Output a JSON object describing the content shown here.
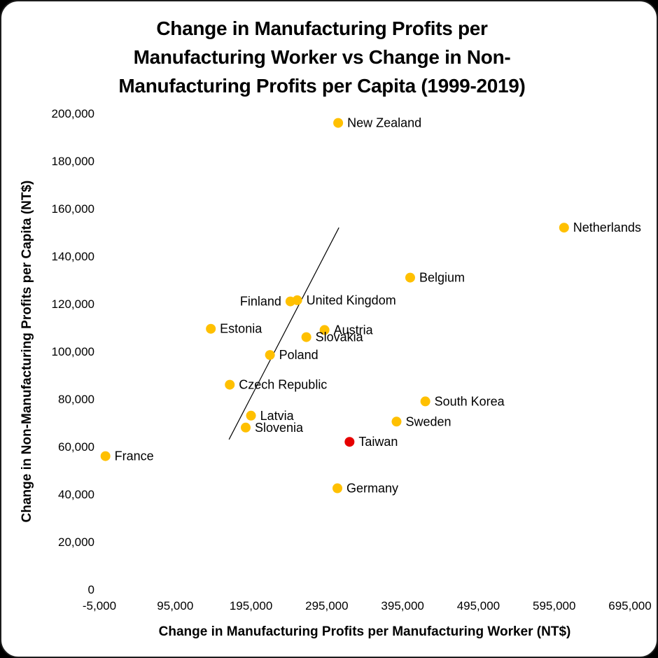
{
  "frame": {
    "background_color": "#ffffff",
    "corner_color": "#000000"
  },
  "chart_data": {
    "type": "scatter",
    "title": "Change in Manufacturing Profits per Manufacturing Worker vs Change in Non-Manufacturing Profits per Capita (1999-2019)",
    "title_lines": [
      "Change in Manufacturing Profits per",
      "Manufacturing Worker vs Change in Non-",
      "Manufacturing Profits per Capita (1999-2019)"
    ],
    "xlabel": "Change in Manufacturing Profits per Manufacturing Worker (NT$)",
    "ylabel": "Change in Non-Manufacturing Profits per Capita (NT$)",
    "xlim": [
      -5000,
      695000
    ],
    "ylim": [
      0,
      200000
    ],
    "grid": false,
    "legend": false,
    "default_point_color": "#FFC000",
    "accent_color": "#E60000",
    "x_ticks": [
      {
        "value": -5000,
        "label": "-5,000"
      },
      {
        "value": 95000,
        "label": "95,000"
      },
      {
        "value": 195000,
        "label": "195,000"
      },
      {
        "value": 295000,
        "label": "295,000"
      },
      {
        "value": 395000,
        "label": "395,000"
      },
      {
        "value": 495000,
        "label": "495,000"
      },
      {
        "value": 595000,
        "label": "595,000"
      },
      {
        "value": 695000,
        "label": "695,000"
      }
    ],
    "y_ticks": [
      {
        "value": 0,
        "label": "0"
      },
      {
        "value": 20000,
        "label": "20,000"
      },
      {
        "value": 40000,
        "label": "40,000"
      },
      {
        "value": 60000,
        "label": "60,000"
      },
      {
        "value": 80000,
        "label": "80,000"
      },
      {
        "value": 100000,
        "label": "100,000"
      },
      {
        "value": 120000,
        "label": "120,000"
      },
      {
        "value": 140000,
        "label": "140,000"
      },
      {
        "value": 160000,
        "label": "160,000"
      },
      {
        "value": 180000,
        "label": "180,000"
      },
      {
        "value": 200000,
        "label": "200,000"
      }
    ],
    "points": [
      {
        "label": "New Zealand",
        "x": 310000,
        "y": 196000,
        "color": "#FFC000",
        "label_color": "#000000",
        "label_side": "right"
      },
      {
        "label": "Netherlands",
        "x": 608000,
        "y": 152000,
        "color": "#FFC000",
        "label_color": "#000000",
        "label_side": "right"
      },
      {
        "label": "Belgium",
        "x": 405000,
        "y": 131000,
        "color": "#FFC000",
        "label_color": "#000000",
        "label_side": "right"
      },
      {
        "label": "Finland",
        "x": 247000,
        "y": 121000,
        "color": "#FFC000",
        "label_color": "#000000",
        "label_side": "left"
      },
      {
        "label": "United Kingdom",
        "x": 256000,
        "y": 121500,
        "color": "#FFC000",
        "label_color": "#000000",
        "label_side": "right"
      },
      {
        "label": "Estonia",
        "x": 142000,
        "y": 109500,
        "color": "#FFC000",
        "label_color": "#000000",
        "label_side": "right"
      },
      {
        "label": "Austria",
        "x": 292000,
        "y": 109000,
        "color": "#FFC000",
        "label_color": "#000000",
        "label_side": "right"
      },
      {
        "label": "Slovakia",
        "x": 268000,
        "y": 106000,
        "color": "#FFC000",
        "label_color": "#000000",
        "label_side": "right"
      },
      {
        "label": "Poland",
        "x": 220000,
        "y": 98500,
        "color": "#FFC000",
        "label_color": "#000000",
        "label_side": "right"
      },
      {
        "label": "Czech Republic",
        "x": 167000,
        "y": 86000,
        "color": "#FFC000",
        "label_color": "#000000",
        "label_side": "right"
      },
      {
        "label": "South Korea",
        "x": 425000,
        "y": 79000,
        "color": "#FFC000",
        "label_color": "#000000",
        "label_side": "right"
      },
      {
        "label": "Latvia",
        "x": 195000,
        "y": 73000,
        "color": "#FFC000",
        "label_color": "#000000",
        "label_side": "right"
      },
      {
        "label": "Sweden",
        "x": 387000,
        "y": 70500,
        "color": "#FFC000",
        "label_color": "#000000",
        "label_side": "right"
      },
      {
        "label": "Slovenia",
        "x": 188000,
        "y": 68000,
        "color": "#FFC000",
        "label_color": "#000000",
        "label_side": "right"
      },
      {
        "label": "Taiwan",
        "x": 325000,
        "y": 62000,
        "color": "#E60000",
        "label_color": "#E60000",
        "label_side": "right"
      },
      {
        "label": "France",
        "x": 3000,
        "y": 56000,
        "color": "#FFC000",
        "label_color": "#000000",
        "label_side": "right"
      },
      {
        "label": "Germany",
        "x": 309000,
        "y": 42500,
        "color": "#FFC000",
        "label_color": "#000000",
        "label_side": "right"
      }
    ],
    "trendline": {
      "x1": 166000,
      "y1": 63000,
      "x2": 311000,
      "y2": 152000,
      "color": "#000000",
      "width": 1.2
    }
  }
}
